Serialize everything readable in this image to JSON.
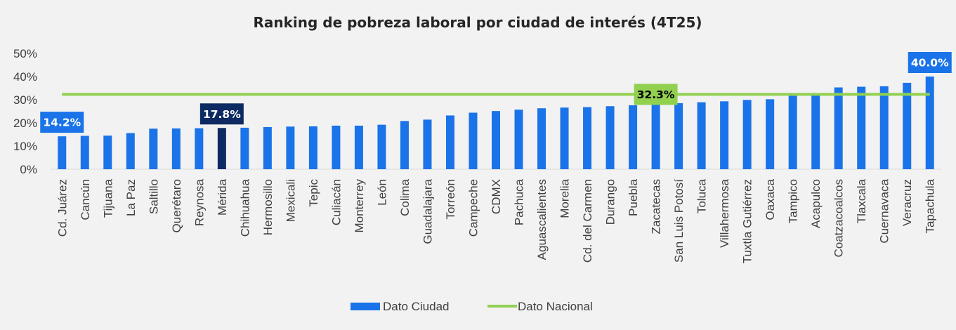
{
  "chart_data": {
    "type": "bar",
    "title": "Ranking de pobreza laboral por ciudad de interés (4T25)",
    "categories": [
      "Cd. Juárez",
      "Cancún",
      "Tijuana",
      "La Paz",
      "Saltillo",
      "Querétaro",
      "Reynosa",
      "Mérida",
      "Chihuahua",
      "Hermosillo",
      "Mexicali",
      "Tepic",
      "Culiacán",
      "Monterrey",
      "León",
      "Colima",
      "Guadalajara",
      "Torreón",
      "Campeche",
      "CDMX",
      "Pachuca",
      "Aguascalientes",
      "Morelia",
      "Cd. del Carmen",
      "Durango",
      "Puebla",
      "Zacatecas",
      "San Luis Potosí",
      "Toluca",
      "Villahermosa",
      "Tuxtla Gutiérrez",
      "Oaxaca",
      "Tampico",
      "Acapulco",
      "Coatzacoalcos",
      "Tlaxcala",
      "Cuernavaca",
      "Veracruz",
      "Tapachula"
    ],
    "series": [
      {
        "name": "Dato Ciudad",
        "type": "bar",
        "color": "#1a73e8",
        "values": [
          14.2,
          14.4,
          14.5,
          15.6,
          17.5,
          17.6,
          17.7,
          17.8,
          17.9,
          18.2,
          18.4,
          18.5,
          18.8,
          18.8,
          19.2,
          20.8,
          21.4,
          23.2,
          24.4,
          25.1,
          25.7,
          26.3,
          26.6,
          26.8,
          27.2,
          27.6,
          28.2,
          28.5,
          28.9,
          29.3,
          29.9,
          30.2,
          31.7,
          31.9,
          35.3,
          35.6,
          35.8,
          37.3,
          40.0
        ]
      },
      {
        "name": "Dato Nacional",
        "type": "line",
        "color": "#92d050",
        "value": 32.3
      }
    ],
    "highlight": {
      "category": "Mérida",
      "color": "#0d2a63"
    },
    "callouts": [
      {
        "category": "Cd. Juárez",
        "text": "14.2%",
        "bg": "#1a73e8",
        "fg": "#ffffff"
      },
      {
        "category": "Mérida",
        "text": "17.8%",
        "bg": "#0d2a63",
        "fg": "#ffffff"
      },
      {
        "category": "Zacatecas",
        "text": "32.3%",
        "bg": "#92d050",
        "fg": "#000000",
        "on": "line"
      },
      {
        "category": "Tapachula",
        "text": "40.0%",
        "bg": "#1a73e8",
        "fg": "#ffffff"
      }
    ],
    "yticks": [
      "0%",
      "10%",
      "20%",
      "30%",
      "40%",
      "50%"
    ],
    "ylim": [
      0,
      50
    ],
    "grid": false,
    "legend_position": "bottom"
  }
}
